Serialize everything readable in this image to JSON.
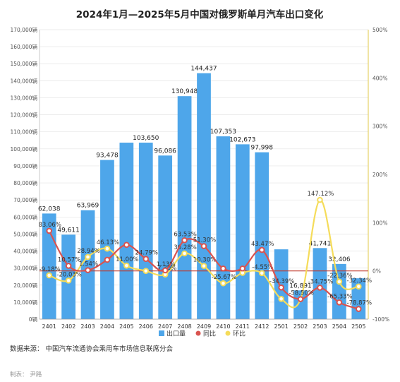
{
  "chart_data": {
    "type": "bar",
    "title": "2024年1月—2025年5月中国对俄罗斯单月汽车出口变化",
    "categories": [
      "2401",
      "2402",
      "2403",
      "2404",
      "2405",
      "2406",
      "2407",
      "2408",
      "2409",
      "2410",
      "2411",
      "2412",
      "2501",
      "2502",
      "2503",
      "2504",
      "2505"
    ],
    "left_axis": {
      "ylim": [
        0,
        170000
      ],
      "step": 10000,
      "unit": "辆"
    },
    "right_axis": {
      "ylim": [
        -100,
        500
      ],
      "step": 100,
      "unit": "%"
    },
    "series": [
      {
        "name": "出口量",
        "type": "bar",
        "color": "#4ea6ea",
        "values": [
          62038,
          49611,
          63969,
          93478,
          103650,
          103650,
          96086,
          130948,
          144437,
          107353,
          102673,
          97998,
          41000,
          16891,
          41741,
          32406,
          24000
        ],
        "labels": [
          "62,038",
          "49,611",
          "63,969",
          "93,478",
          "",
          "103,650",
          "96,086",
          "130,948",
          "144,437",
          "107,353",
          "102,673",
          "97,998",
          "",
          "16,891",
          "41,741",
          "32,406",
          ""
        ]
      },
      {
        "name": "同比",
        "type": "line",
        "color": "#d9534f",
        "values": [
          83.06,
          10.57,
          1.54,
          23.0,
          54.0,
          24.79,
          1.13,
          63.53,
          51.3,
          5.0,
          5.0,
          43.47,
          -34.39,
          -58.5,
          -34.75,
          -65.33,
          -78.87
        ],
        "labels": [
          "83.06%",
          "10.57%",
          "1.54%",
          "",
          "",
          "24.79%",
          "1.13%",
          "63.53%",
          "51.30%",
          "",
          "",
          "43.47%",
          "-34.39%",
          "-58.50%",
          "-34.75%",
          "-65.33%",
          "-78.87%"
        ]
      },
      {
        "name": "环比",
        "type": "line",
        "color": "#f5dc5a",
        "values": [
          -9.18,
          -20.03,
          28.94,
          46.13,
          11.0,
          0.0,
          -7.3,
          36.28,
          10.3,
          -25.67,
          -4.0,
          -4.55,
          -58.0,
          -58.5,
          147.12,
          -22.36,
          -32.34
        ],
        "labels": [
          "-9.18%",
          "-20.03%",
          "28.94%",
          "46.13%",
          "11.00%",
          "",
          "-7.30%",
          "36.28%",
          "10.30%",
          "-25.67%",
          "",
          "-4.55%",
          "",
          "",
          "147.12%",
          "-22.36%",
          "-32.34%"
        ]
      }
    ],
    "left_ticks": [
      "0辆",
      "10,000辆",
      "20,000辆",
      "30,000辆",
      "40,000辆",
      "50,000辆",
      "60,000辆",
      "70,000辆",
      "80,000辆",
      "90,000辆",
      "100,000辆",
      "110,000辆",
      "120,000辆",
      "130,000辆",
      "140,000辆",
      "150,000辆",
      "160,000辆",
      "170,000辆"
    ],
    "right_ticks": [
      "-100%",
      "0%",
      "100%",
      "200%",
      "300%",
      "400%",
      "500%"
    ],
    "legend": [
      "出口量",
      "同比",
      "环比"
    ],
    "grid": true,
    "legend_position": "bottom"
  },
  "footer": {
    "source": "数据来源：  中国汽车流通协会乘用车市场信息联席分会",
    "maker": "制表：  尹路"
  }
}
